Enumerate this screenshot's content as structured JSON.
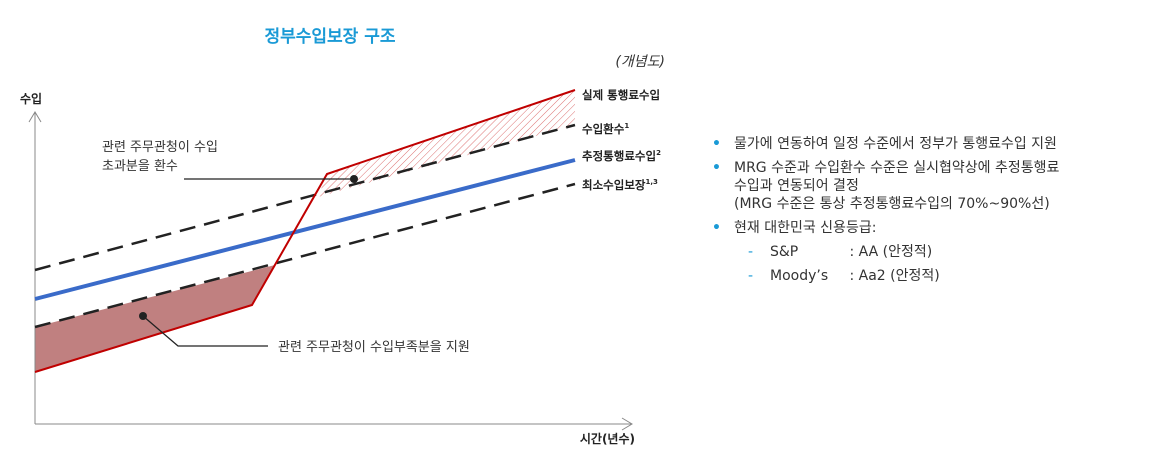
{
  "diagram": {
    "title": "정부수입보장 구조",
    "subtitle": "(개념도)",
    "y_axis_label": "수입",
    "x_axis_label": "시간(년수)",
    "labels": {
      "actual": "실제 통행료수입",
      "refund": "수입환수",
      "refund_sup": "1",
      "estimated": "추정통행료수입",
      "estimated_sup": "2",
      "minimum": "최소수입보장",
      "minimum_sup": "1,3"
    },
    "notes": {
      "refund_line1": "관련 주무관청이 수입",
      "refund_line2": "초과분을 환수",
      "support": "관련 주무관청이 수입부족분을 지원"
    },
    "colors": {
      "title": "#1a9ad6",
      "actual": "#c00000",
      "estimated": "#3a6bc9",
      "shortfall_fill": "#c08080",
      "dashed": "#222222"
    }
  },
  "bullets": {
    "item1": "물가에 연동하여 일정 수준에서 정부가 통행료수입 지원",
    "item2_line1": "MRG 수준과 수입환수 수준은 실시협약상에 추정통행료",
    "item2_line2": "수입과 연동되어 결정",
    "item2_line3": "(MRG 수준은 통상 추정통행료수입의 70%~90%선)",
    "item3": "현재 대한민국 신용등급:",
    "ratings": [
      {
        "agency": "S&P",
        "rating": ": AA (안정적)"
      },
      {
        "agency": "Moody’s",
        "rating": ": Aa2 (안정적)"
      }
    ]
  }
}
